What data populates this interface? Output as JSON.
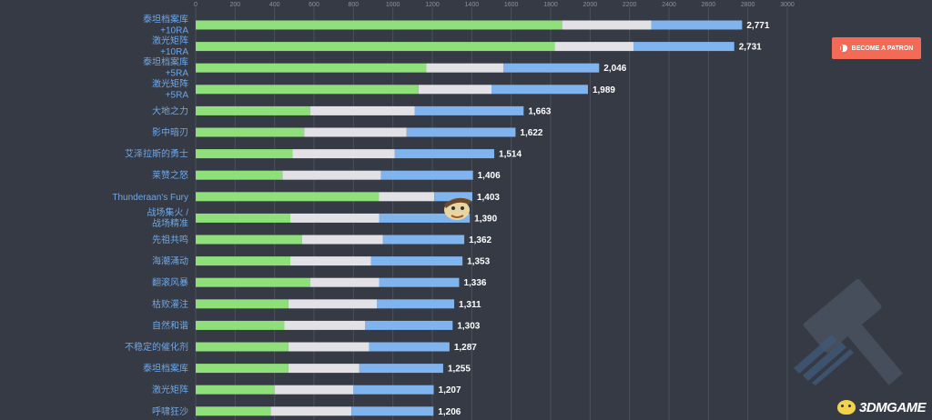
{
  "chart_data": {
    "type": "bar",
    "orientation": "horizontal",
    "stacked": true,
    "xlim": [
      0,
      3000
    ],
    "x_ticks": [
      "0",
      "200",
      "400",
      "600",
      "800",
      "1000",
      "1200",
      "1400",
      "1600",
      "1800",
      "2000",
      "2200",
      "2400",
      "2600",
      "2800",
      "3000"
    ],
    "grid": true,
    "categories": [
      [
        "泰坦档案库",
        "+10RA"
      ],
      [
        "激光矩阵",
        "+10RA"
      ],
      [
        "泰坦档案库",
        "+5RA"
      ],
      [
        "激光矩阵",
        "+5RA"
      ],
      [
        "大地之力"
      ],
      [
        "影中暗刃"
      ],
      [
        "艾泽拉斯的勇士"
      ],
      [
        "莱赞之怒"
      ],
      [
        "Thunderaan's Fury"
      ],
      [
        "战场集火 /",
        "战场精准"
      ],
      [
        "先祖共鸣"
      ],
      [
        "海潮涌动"
      ],
      [
        "翻滚风暴"
      ],
      [
        "枯败灌注"
      ],
      [
        "自然和谐"
      ],
      [
        "不稳定的催化剂"
      ],
      [
        "泰坦档案库"
      ],
      [
        "激光矩阵"
      ],
      [
        "呼啸狂沙"
      ]
    ],
    "totals": [
      2771,
      2731,
      2046,
      1989,
      1663,
      1622,
      1514,
      1406,
      1403,
      1390,
      1362,
      1353,
      1336,
      1311,
      1303,
      1287,
      1255,
      1207,
      1206
    ],
    "total_labels": [
      "2,771",
      "2,731",
      "2,046",
      "1,989",
      "1,663",
      "1,622",
      "1,514",
      "1,406",
      "1,403",
      "1,390",
      "1,362",
      "1,353",
      "1,336",
      "1,311",
      "1,303",
      "1,287",
      "1,255",
      "1,207",
      "1,206"
    ],
    "series": [
      {
        "color": "#8fe07a",
        "values": [
          1860,
          1820,
          1170,
          1130,
          580,
          550,
          490,
          440,
          930,
          480,
          540,
          480,
          580,
          470,
          450,
          470,
          470,
          400,
          380
        ]
      },
      {
        "color": "#e2e2e6",
        "values": [
          450,
          400,
          390,
          370,
          530,
          520,
          520,
          500,
          280,
          450,
          410,
          410,
          350,
          450,
          410,
          410,
          360,
          400,
          410
        ]
      },
      {
        "color": "#7fb4ee",
        "values": [
          461,
          511,
          486,
          489,
          553,
          552,
          504,
          466,
          193,
          460,
          412,
          463,
          406,
          391,
          443,
          407,
          425,
          407,
          416
        ]
      }
    ]
  },
  "patron_button": {
    "label": "BECOME A PATRON",
    "icon": "patreon-icon"
  },
  "watermark": {
    "text": "3DMGAME"
  }
}
